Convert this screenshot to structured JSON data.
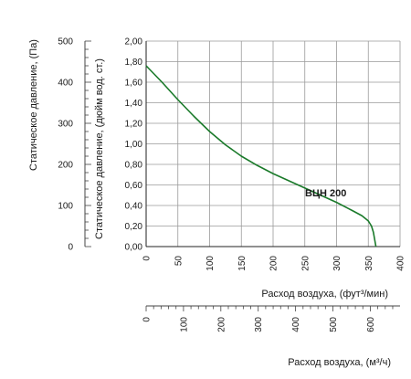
{
  "chart_data": {
    "type": "line",
    "title": "",
    "left_axis": {
      "label": "Статическое давление, (Па)",
      "ticks": [
        "0",
        "100",
        "200",
        "300",
        "400",
        "500"
      ],
      "range": [
        0,
        500
      ]
    },
    "inner_axis": {
      "label": "Статическое давление, (дюйм вод. ст.)",
      "ticks": [
        "0,00",
        "0,20",
        "0,40",
        "0,60",
        "0,80",
        "1,00",
        "1,20",
        "1,40",
        "1,60",
        "1,80",
        "2,00"
      ],
      "range": [
        0,
        2.0
      ]
    },
    "x_axis_cfm": {
      "label": "Расход воздуха, (фут³/мин)",
      "ticks": [
        "0",
        "50",
        "100",
        "150",
        "200",
        "250",
        "300",
        "350",
        "400"
      ],
      "range": [
        0,
        400
      ]
    },
    "x_axis_m3h": {
      "label": "Расход воздуха, (м³/ч)",
      "ticks": [
        "0",
        "100",
        "200",
        "300",
        "400",
        "500",
        "600"
      ],
      "range": [
        0,
        679.6
      ]
    },
    "grid": true,
    "series": [
      {
        "name": "ВЦН 200",
        "color": "#1a7a2a",
        "x": [
          0,
          25,
          50,
          75,
          100,
          125,
          150,
          175,
          200,
          225,
          250,
          275,
          300,
          325,
          340,
          350,
          355,
          358,
          360,
          362
        ],
        "y": [
          1.76,
          1.6,
          1.43,
          1.27,
          1.12,
          0.99,
          0.88,
          0.79,
          0.71,
          0.64,
          0.57,
          0.5,
          0.43,
          0.35,
          0.3,
          0.25,
          0.2,
          0.14,
          0.07,
          0.0
        ]
      }
    ]
  }
}
